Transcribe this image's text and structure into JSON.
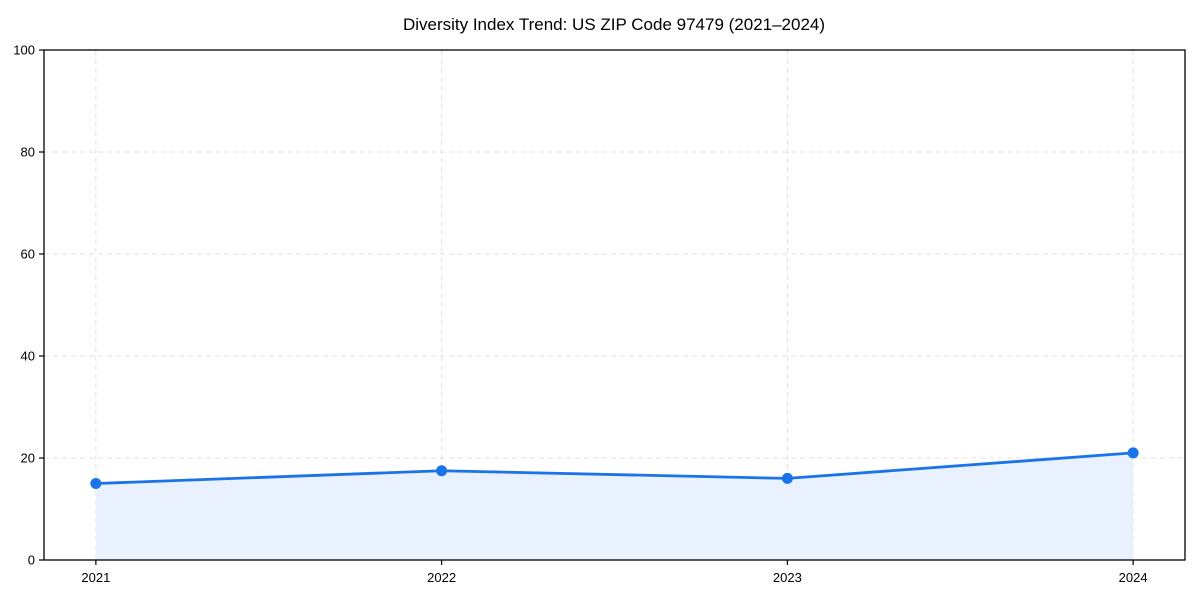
{
  "figure": {
    "background_color": "#ffffff"
  },
  "chart_data": {
    "type": "area",
    "title": "Diversity Index Trend: US ZIP Code 97479 (2021–2024)",
    "categories": [
      "2021",
      "2022",
      "2023",
      "2024"
    ],
    "series": [
      {
        "name": "Diversity Index",
        "values": [
          15,
          17.5,
          16,
          21
        ]
      }
    ],
    "xlabel": "",
    "ylabel": "",
    "ylim": [
      0,
      100
    ],
    "yticks": [
      0,
      20,
      40,
      60,
      80,
      100
    ],
    "grid": true,
    "grid_style": "dashed",
    "legend_position": "none",
    "line_color": "#1a73e8",
    "marker_color": "#1a73e8",
    "fill_color": "#e8f1fd",
    "grid_color": "#e0e0e0",
    "spine_color": "#000000",
    "marker_shape": "circle"
  }
}
